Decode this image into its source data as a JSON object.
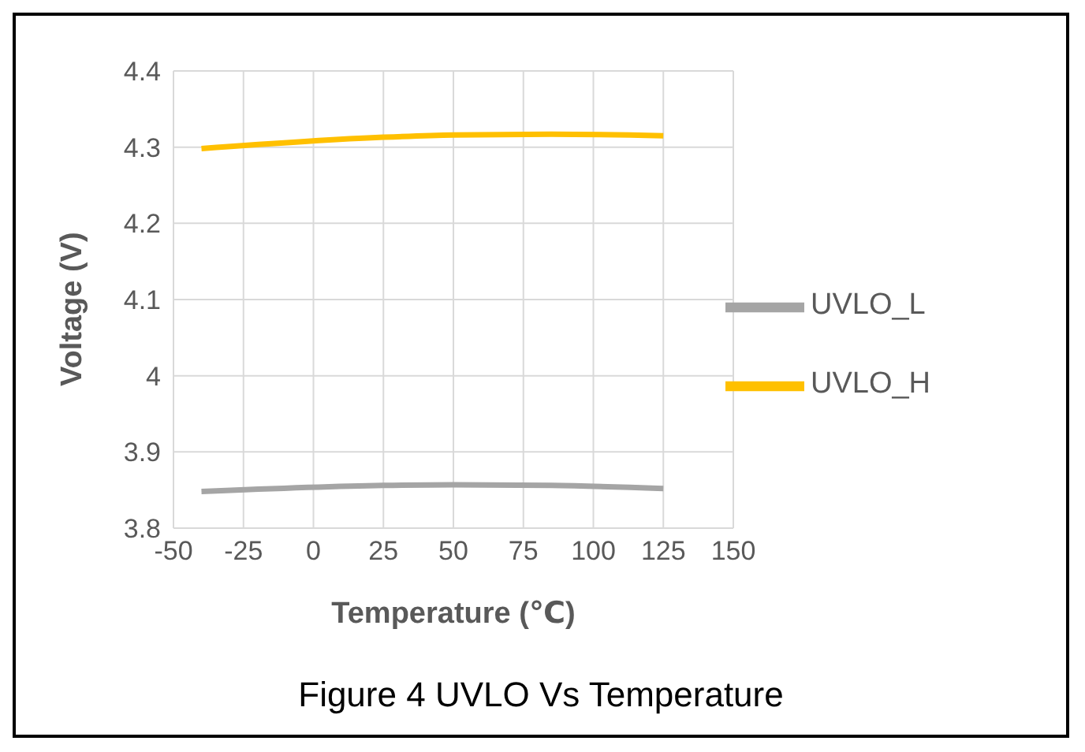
{
  "chart_data": {
    "type": "line",
    "xlabel": "Temperature (℃)",
    "ylabel": "Voltage (V)",
    "annotations": [
      "Figure 4 UVLO Vs Temperature"
    ],
    "series": [
      {
        "name": "UVLO_L",
        "color": "#a5a5a5",
        "x": [
          -40,
          25,
          50,
          85,
          125
        ],
        "values": [
          3.848,
          3.856,
          3.857,
          3.856,
          3.852
        ]
      },
      {
        "name": "UVLO_H",
        "color": "#ffc000",
        "x": [
          -40,
          25,
          50,
          85,
          125
        ],
        "values": [
          4.298,
          4.313,
          4.316,
          4.317,
          4.315
        ]
      }
    ],
    "xlim": [
      -50,
      150
    ],
    "xticks": [
      -50,
      -25,
      0,
      25,
      50,
      75,
      100,
      125,
      150
    ],
    "ylim": [
      3.8,
      4.4
    ],
    "yticks": [
      3.8,
      3.9,
      4,
      4.1,
      4.2,
      4.3,
      4.4
    ],
    "grid": true,
    "legend": "right",
    "marker": "none",
    "line_style": "solid"
  }
}
